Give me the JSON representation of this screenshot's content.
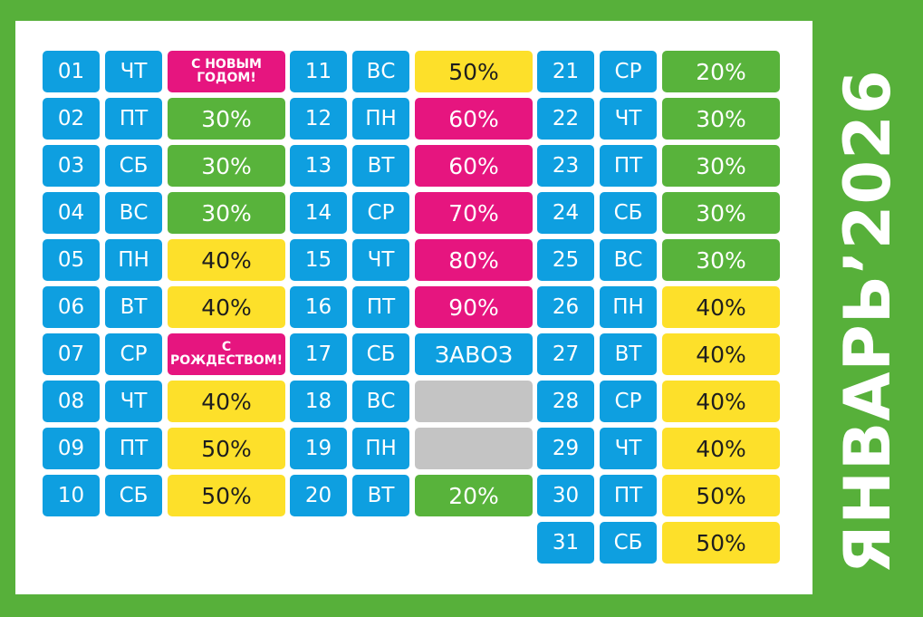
{
  "title": "ЯНВАРЬ’2026",
  "colors": {
    "frame": "#57b03a",
    "blue": "#0e9fe0",
    "green": "#58b33b",
    "yellow": "#fde02a",
    "pink": "#e6157f",
    "gray": "#c4c4c4"
  },
  "days": [
    {
      "num": "01",
      "dow": "ЧТ",
      "label": "С НОВЫМ ГОДОМ!",
      "color": "pink"
    },
    {
      "num": "02",
      "dow": "ПТ",
      "label": "30%",
      "color": "green"
    },
    {
      "num": "03",
      "dow": "СБ",
      "label": "30%",
      "color": "green"
    },
    {
      "num": "04",
      "dow": "ВС",
      "label": "30%",
      "color": "green"
    },
    {
      "num": "05",
      "dow": "ПН",
      "label": "40%",
      "color": "yellow"
    },
    {
      "num": "06",
      "dow": "ВТ",
      "label": "40%",
      "color": "yellow"
    },
    {
      "num": "07",
      "dow": "СР",
      "label": "С РОЖДЕСТВОМ!",
      "color": "pink"
    },
    {
      "num": "08",
      "dow": "ЧТ",
      "label": "40%",
      "color": "yellow"
    },
    {
      "num": "09",
      "dow": "ПТ",
      "label": "50%",
      "color": "yellow"
    },
    {
      "num": "10",
      "dow": "СБ",
      "label": "50%",
      "color": "yellow"
    },
    {
      "num": "11",
      "dow": "ВС",
      "label": "50%",
      "color": "yellow"
    },
    {
      "num": "12",
      "dow": "ПН",
      "label": "60%",
      "color": "pink"
    },
    {
      "num": "13",
      "dow": "ВТ",
      "label": "60%",
      "color": "pink"
    },
    {
      "num": "14",
      "dow": "СР",
      "label": "70%",
      "color": "pink"
    },
    {
      "num": "15",
      "dow": "ЧТ",
      "label": "80%",
      "color": "pink"
    },
    {
      "num": "16",
      "dow": "ПТ",
      "label": "90%",
      "color": "pink"
    },
    {
      "num": "17",
      "dow": "СБ",
      "label": "ЗАВОЗ",
      "color": "blue"
    },
    {
      "num": "18",
      "dow": "ВС",
      "label": "",
      "color": "gray"
    },
    {
      "num": "19",
      "dow": "ПН",
      "label": "",
      "color": "gray"
    },
    {
      "num": "20",
      "dow": "ВТ",
      "label": "20%",
      "color": "green"
    },
    {
      "num": "21",
      "dow": "СР",
      "label": "20%",
      "color": "green"
    },
    {
      "num": "22",
      "dow": "ЧТ",
      "label": "30%",
      "color": "green"
    },
    {
      "num": "23",
      "dow": "ПТ",
      "label": "30%",
      "color": "green"
    },
    {
      "num": "24",
      "dow": "СБ",
      "label": "30%",
      "color": "green"
    },
    {
      "num": "25",
      "dow": "ВС",
      "label": "30%",
      "color": "green"
    },
    {
      "num": "26",
      "dow": "ПН",
      "label": "40%",
      "color": "yellow"
    },
    {
      "num": "27",
      "dow": "ВТ",
      "label": "40%",
      "color": "yellow"
    },
    {
      "num": "28",
      "dow": "СР",
      "label": "40%",
      "color": "yellow"
    },
    {
      "num": "29",
      "dow": "ЧТ",
      "label": "40%",
      "color": "yellow"
    },
    {
      "num": "30",
      "dow": "ПТ",
      "label": "50%",
      "color": "yellow"
    },
    {
      "num": "31",
      "dow": "СБ",
      "label": "50%",
      "color": "yellow"
    }
  ]
}
